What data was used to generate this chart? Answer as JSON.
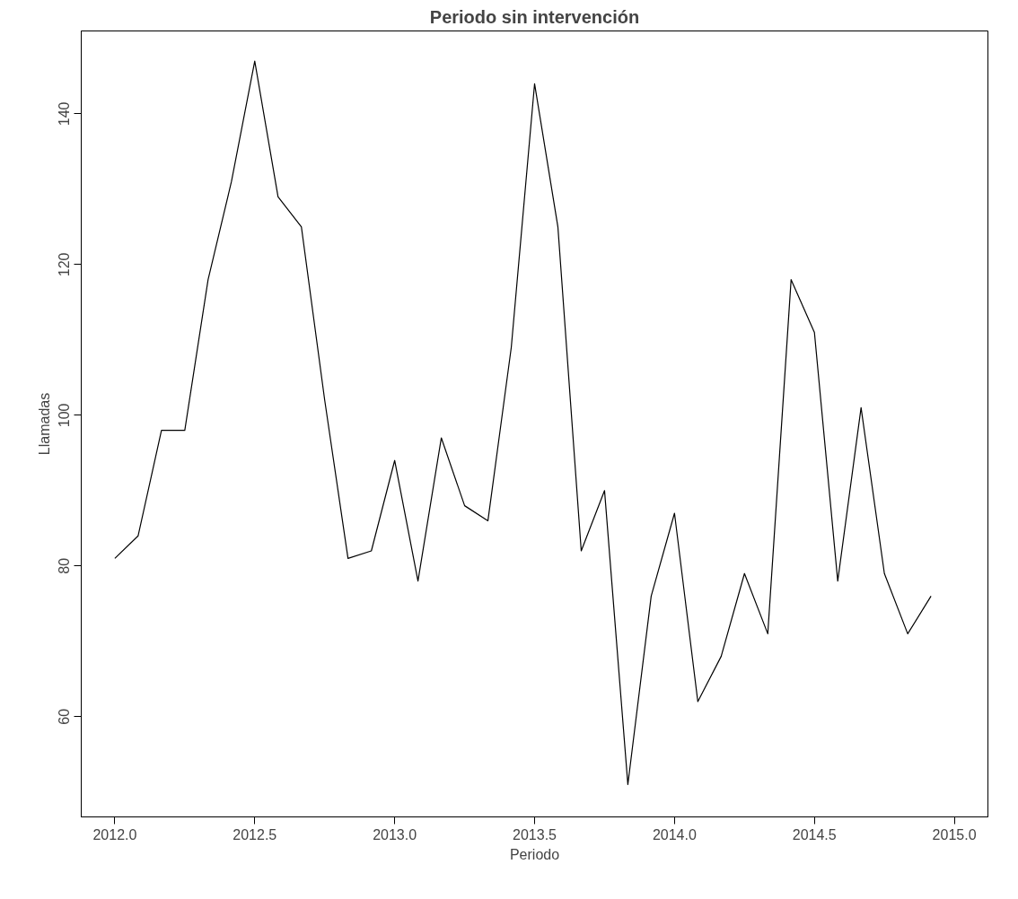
{
  "chart_data": {
    "type": "line",
    "title": "Periodo sin intervención",
    "xlabel": "Periodo",
    "ylabel": "Llamadas",
    "x": [
      2012.0,
      2012.0833,
      2012.1667,
      2012.25,
      2012.3333,
      2012.4167,
      2012.5,
      2012.5833,
      2012.6667,
      2012.75,
      2012.8333,
      2012.9167,
      2013.0,
      2013.0833,
      2013.1667,
      2013.25,
      2013.3333,
      2013.4167,
      2013.5,
      2013.5833,
      2013.6667,
      2013.75,
      2013.8333,
      2013.9167,
      2014.0,
      2014.0833,
      2014.1667,
      2014.25,
      2014.3333,
      2014.4167,
      2014.5,
      2014.5833,
      2014.6667,
      2014.75,
      2014.8333,
      2014.9167
    ],
    "series": [
      {
        "color": "#000000",
        "values": [
          81,
          84,
          98,
          98,
          118,
          131,
          147,
          129,
          125,
          102,
          81,
          82,
          94,
          78,
          97,
          88,
          86,
          109,
          144,
          125,
          82,
          90,
          51,
          76,
          87,
          62,
          68,
          79,
          71,
          118,
          111,
          78,
          101,
          79,
          71,
          76
        ]
      }
    ],
    "xlim": [
      2011.88,
      2015.12
    ],
    "ylim": [
      46.7,
      151
    ],
    "xticks": [
      {
        "value": 2012.0,
        "label": "2012.0"
      },
      {
        "value": 2012.5,
        "label": "2012.5"
      },
      {
        "value": 2013.0,
        "label": "2013.0"
      },
      {
        "value": 2013.5,
        "label": "2013.5"
      },
      {
        "value": 2014.0,
        "label": "2014.0"
      },
      {
        "value": 2014.5,
        "label": "2014.5"
      },
      {
        "value": 2015.0,
        "label": "2015.0"
      }
    ],
    "yticks": [
      60,
      80,
      100,
      120,
      140
    ],
    "grid": false,
    "line_style": "solid"
  }
}
